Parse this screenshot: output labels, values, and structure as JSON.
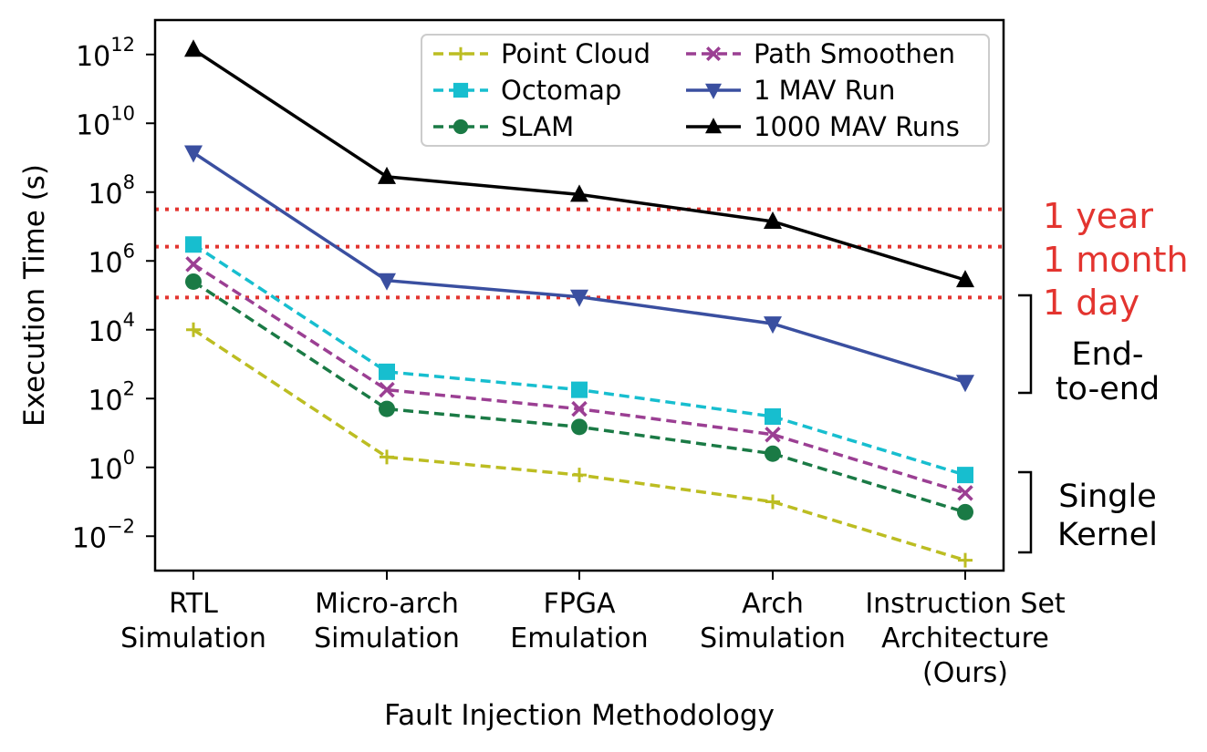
{
  "chart_data": {
    "type": "line",
    "title": "",
    "xlabel": "Fault Injection Methodology",
    "ylabel": "Execution Time (s)",
    "yscale": "log",
    "ylim": [
      0.001,
      10000000000000
    ],
    "grid": false,
    "legend_position": "top-right",
    "legend_columns": 2,
    "categories": [
      [
        "RTL",
        "Simulation"
      ],
      [
        "Micro-arch",
        "Simulation"
      ],
      [
        "FPGA",
        "Emulation"
      ],
      [
        "Arch",
        "Simulation"
      ],
      [
        "Instruction Set",
        "Architecture",
        "(Ours)"
      ]
    ],
    "yticks": [
      {
        "value": 0.01,
        "base": "10",
        "exp": "−2"
      },
      {
        "value": 1,
        "base": "10",
        "exp": "0"
      },
      {
        "value": 100,
        "base": "10",
        "exp": "2"
      },
      {
        "value": 10000,
        "base": "10",
        "exp": "4"
      },
      {
        "value": 1000000,
        "base": "10",
        "exp": "6"
      },
      {
        "value": 100000000,
        "base": "10",
        "exp": "8"
      },
      {
        "value": 10000000000,
        "base": "10",
        "exp": "10"
      },
      {
        "value": 1000000000000,
        "base": "10",
        "exp": "12"
      }
    ],
    "series": [
      {
        "name": "Point Cloud",
        "color": "#bcbd22",
        "dash": true,
        "marker": "plus",
        "values": [
          10000,
          2,
          0.6,
          0.1,
          0.002
        ]
      },
      {
        "name": "Octomap",
        "color": "#17becf",
        "dash": true,
        "marker": "square",
        "values": [
          3000000,
          600,
          180,
          30,
          0.6
        ]
      },
      {
        "name": "SLAM",
        "color": "#1a7a45",
        "dash": true,
        "marker": "circle",
        "values": [
          250000,
          50,
          15,
          2.5,
          0.05
        ]
      },
      {
        "name": "Path Smoothen",
        "color": "#9b3f93",
        "dash": true,
        "marker": "x",
        "values": [
          800000,
          180,
          50,
          9,
          0.18
        ]
      },
      {
        "name": "1 MAV Run",
        "color": "#3a4fa0",
        "dash": false,
        "marker": "triangle-down",
        "values": [
          1400000000,
          270000,
          90000,
          15000,
          300
        ]
      },
      {
        "name": "1000 MAV Runs",
        "color": "#000000",
        "dash": false,
        "marker": "triangle-up",
        "values": [
          1400000000000,
          280000000,
          85000000,
          14000000,
          280000
        ]
      }
    ],
    "reference_lines": [
      {
        "label": "1 year",
        "value": 31536000,
        "color": "#e3342f"
      },
      {
        "label": "1 month",
        "value": 2592000,
        "color": "#e3342f"
      },
      {
        "label": "1 day",
        "value": 86400,
        "color": "#e3342f"
      }
    ],
    "groups": [
      {
        "lines": [
          "End-",
          "to-end"
        ]
      },
      {
        "lines": [
          "Single",
          "Kernel"
        ]
      }
    ]
  }
}
